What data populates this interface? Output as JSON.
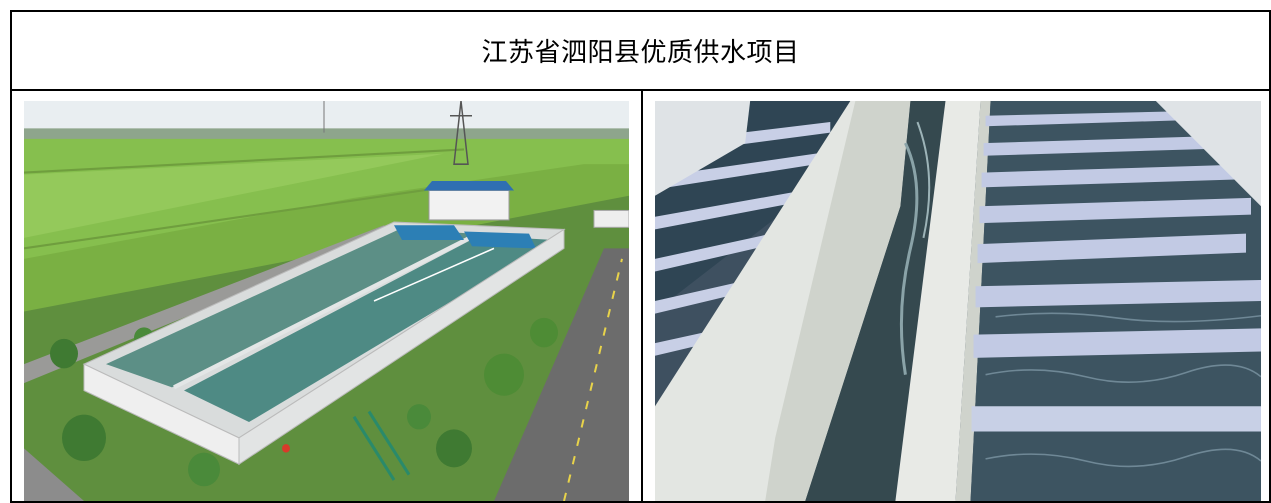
{
  "document": {
    "title": "江苏省泗阳县优质供水项目"
  },
  "photos": [
    {
      "subject": "aerial-view-water-treatment-plant-icon"
    },
    {
      "subject": "filter-tanks-closeup-icon"
    }
  ],
  "colors": {
    "border": "#000000",
    "field_green": "#7fb84a",
    "water_teal": "#4e8a84",
    "concrete": "#e6e8e8"
  }
}
